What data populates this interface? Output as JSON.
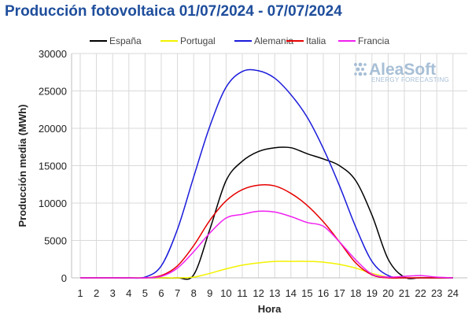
{
  "title": "Producción fotovoltaica 01/07/2024 - 07/07/2024",
  "logo": {
    "name": "AleaSoft",
    "tagline": "ENERGY FORECASTING"
  },
  "chart_data": {
    "type": "line",
    "title": "Producción fotovoltaica 01/07/2024 - 07/07/2024",
    "xlabel": "Hora",
    "ylabel": "Producción media (MWh)",
    "x": [
      1,
      2,
      3,
      4,
      5,
      6,
      7,
      8,
      9,
      10,
      11,
      12,
      13,
      14,
      15,
      16,
      17,
      18,
      19,
      20,
      21,
      22,
      23,
      24
    ],
    "xlim": [
      1,
      24
    ],
    "ylim": [
      0,
      30000
    ],
    "yticks": [
      0,
      5000,
      10000,
      15000,
      20000,
      25000,
      30000
    ],
    "grid": true,
    "legend_position": "top",
    "series": [
      {
        "name": "España",
        "color": "#000000",
        "values": [
          0,
          0,
          0,
          0,
          0,
          0,
          0,
          400,
          6500,
          13000,
          15600,
          16900,
          17400,
          17400,
          16600,
          15900,
          15000,
          13000,
          8400,
          2500,
          100,
          0,
          0,
          0
        ]
      },
      {
        "name": "Portugal",
        "color": "#f2f200",
        "values": [
          0,
          0,
          0,
          0,
          0,
          0,
          0,
          100,
          600,
          1200,
          1700,
          2000,
          2200,
          2200,
          2200,
          2100,
          1800,
          1300,
          600,
          100,
          0,
          0,
          0,
          0
        ]
      },
      {
        "name": "Alemania",
        "color": "#1a1adb",
        "values": [
          0,
          0,
          0,
          0,
          100,
          1600,
          6500,
          13500,
          20300,
          25500,
          27600,
          27700,
          26700,
          24500,
          21500,
          17300,
          12300,
          6800,
          2200,
          300,
          0,
          0,
          0,
          0
        ]
      },
      {
        "name": "Italia",
        "color": "#e60000",
        "values": [
          0,
          0,
          0,
          0,
          0,
          300,
          1600,
          4300,
          7700,
          10300,
          11800,
          12400,
          12300,
          11300,
          9700,
          7500,
          4800,
          2000,
          400,
          0,
          0,
          0,
          0,
          0
        ]
      },
      {
        "name": "Francia",
        "color": "#f020f0",
        "values": [
          0,
          0,
          0,
          0,
          0,
          200,
          1300,
          3500,
          6000,
          8000,
          8500,
          8900,
          8800,
          8200,
          7400,
          6900,
          4800,
          2400,
          500,
          100,
          200,
          300,
          100,
          0
        ]
      }
    ]
  }
}
